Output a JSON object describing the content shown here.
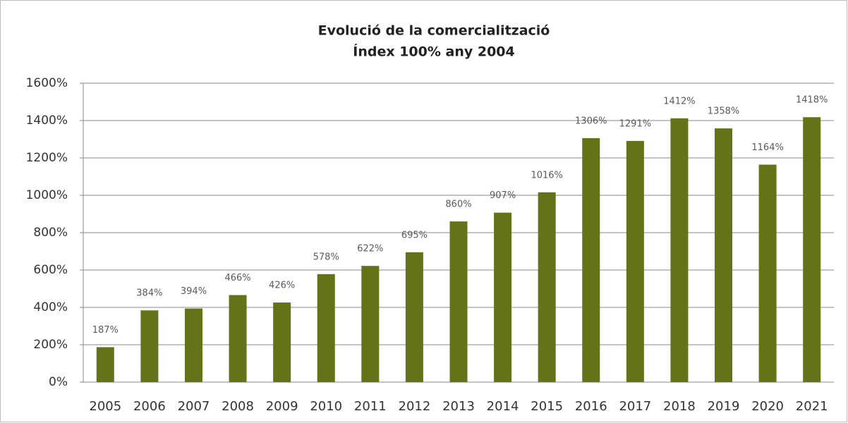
{
  "chart_data": {
    "type": "bar",
    "title": "Evolució de la comercialització",
    "subtitle": "Índex 100% any 2004",
    "categories": [
      "2005",
      "2006",
      "2007",
      "2008",
      "2009",
      "2010",
      "2011",
      "2012",
      "2013",
      "2014",
      "2015",
      "2016",
      "2017",
      "2018",
      "2019",
      "2020",
      "2021"
    ],
    "values": [
      187,
      384,
      394,
      466,
      426,
      578,
      622,
      695,
      860,
      907,
      1016,
      1306,
      1291,
      1412,
      1358,
      1164,
      1418
    ],
    "value_labels": [
      "187%",
      "384%",
      "394%",
      "466%",
      "426%",
      "578%",
      "622%",
      "695%",
      "860%",
      "907%",
      "1016%",
      "1306%",
      "1291%",
      "1412%",
      "1358%",
      "1164%",
      "1418%"
    ],
    "color": "#647318",
    "ylim": [
      0,
      1600
    ],
    "yticks": [
      {
        "value": 0,
        "label": "0%"
      },
      {
        "value": 200,
        "label": "200%"
      },
      {
        "value": 400,
        "label": "400%"
      },
      {
        "value": 600,
        "label": "600%"
      },
      {
        "value": 800,
        "label": "800%"
      },
      {
        "value": 1000,
        "label": "1000%"
      },
      {
        "value": 1200,
        "label": "1200%"
      },
      {
        "value": 1400,
        "label": "1400%"
      },
      {
        "value": 1600,
        "label": "1600%"
      }
    ],
    "grid": true
  }
}
